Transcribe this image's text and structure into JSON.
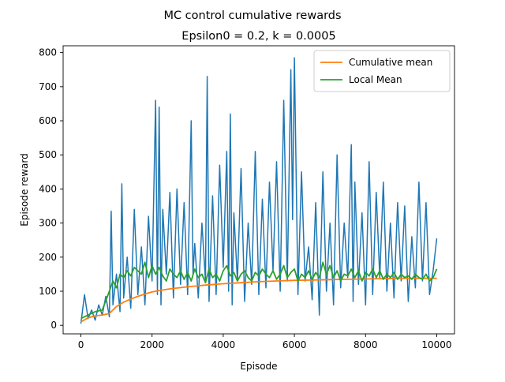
{
  "title": "MC control cumulative rewards",
  "subtitle": "Epsilon0 = 0.2, k = 0.0005",
  "chart_data": {
    "type": "line",
    "xlabel": "Episode",
    "ylabel": "Episode reward",
    "xlim": [
      -500,
      10500
    ],
    "ylim": [
      -25,
      820
    ],
    "xticks": [
      0,
      2000,
      4000,
      6000,
      8000,
      10000
    ],
    "yticks": [
      0,
      100,
      200,
      300,
      400,
      500,
      600,
      700,
      800
    ],
    "grid": false,
    "legend": "top-right",
    "series": [
      {
        "name": "",
        "color": "#1f77b4",
        "x": [
          0,
          100,
          200,
          300,
          400,
          500,
          600,
          700,
          800,
          850,
          900,
          1000,
          1100,
          1150,
          1200,
          1300,
          1400,
          1500,
          1600,
          1700,
          1800,
          1900,
          2000,
          2100,
          2150,
          2200,
          2250,
          2300,
          2400,
          2500,
          2600,
          2700,
          2800,
          2900,
          3000,
          3100,
          3150,
          3200,
          3300,
          3400,
          3500,
          3550,
          3600,
          3700,
          3800,
          3900,
          4000,
          4100,
          4150,
          4200,
          4250,
          4300,
          4400,
          4500,
          4600,
          4700,
          4800,
          4900,
          5000,
          5100,
          5200,
          5300,
          5400,
          5500,
          5600,
          5700,
          5800,
          5900,
          5950,
          6000,
          6100,
          6200,
          6300,
          6400,
          6500,
          6600,
          6700,
          6800,
          6900,
          7000,
          7100,
          7200,
          7300,
          7400,
          7500,
          7600,
          7650,
          7700,
          7800,
          7900,
          8000,
          8100,
          8200,
          8300,
          8400,
          8500,
          8600,
          8700,
          8800,
          8900,
          9000,
          9100,
          9200,
          9300,
          9400,
          9500,
          9600,
          9700,
          9800,
          9900,
          10000
        ],
        "values": [
          5,
          90,
          20,
          45,
          15,
          60,
          30,
          85,
          25,
          335,
          60,
          150,
          40,
          415,
          80,
          200,
          50,
          340,
          90,
          230,
          60,
          320,
          130,
          660,
          90,
          640,
          60,
          340,
          150,
          390,
          80,
          400,
          120,
          360,
          90,
          600,
          150,
          240,
          80,
          300,
          130,
          730,
          70,
          380,
          90,
          470,
          170,
          510,
          100,
          620,
          60,
          330,
          130,
          460,
          70,
          300,
          120,
          510,
          90,
          370,
          110,
          420,
          160,
          480,
          100,
          660,
          130,
          750,
          310,
          785,
          90,
          450,
          130,
          230,
          75,
          360,
          30,
          450,
          100,
          300,
          60,
          500,
          110,
          300,
          140,
          530,
          70,
          420,
          120,
          330,
          60,
          480,
          90,
          390,
          140,
          420,
          100,
          300,
          80,
          360,
          130,
          350,
          70,
          260,
          110,
          420,
          130,
          360,
          90,
          160,
          255
        ]
      },
      {
        "name": "Cumulative mean",
        "color": "#ff7f0e",
        "x": [
          0,
          200,
          400,
          600,
          800,
          1000,
          1200,
          1400,
          1600,
          1800,
          2000,
          2200,
          2500,
          3000,
          3500,
          4000,
          4500,
          5000,
          5500,
          6000,
          6500,
          7000,
          7500,
          8000,
          8500,
          9000,
          9500,
          10000
        ],
        "values": [
          10,
          22,
          28,
          30,
          35,
          55,
          68,
          77,
          85,
          92,
          98,
          102,
          107,
          113,
          118,
          122,
          125,
          128,
          130,
          132,
          133,
          134,
          135,
          136,
          137,
          138,
          138,
          138
        ]
      },
      {
        "name": " Local Mean",
        "color": "#2ca02c",
        "x": [
          0,
          200,
          400,
          600,
          800,
          900,
          1000,
          1100,
          1200,
          1300,
          1400,
          1500,
          1600,
          1700,
          1800,
          1900,
          2000,
          2100,
          2200,
          2300,
          2400,
          2500,
          2600,
          2700,
          2800,
          2900,
          3000,
          3100,
          3200,
          3300,
          3400,
          3500,
          3600,
          3700,
          3800,
          3900,
          4000,
          4100,
          4200,
          4300,
          4400,
          4500,
          4600,
          4700,
          4800,
          4900,
          5000,
          5100,
          5200,
          5300,
          5400,
          5500,
          5600,
          5700,
          5800,
          5900,
          6000,
          6100,
          6200,
          6300,
          6400,
          6500,
          6600,
          6700,
          6800,
          6900,
          7000,
          7100,
          7200,
          7300,
          7400,
          7500,
          7600,
          7700,
          7800,
          7900,
          8000,
          8100,
          8200,
          8300,
          8400,
          8500,
          8600,
          8700,
          8800,
          8900,
          9000,
          9100,
          9200,
          9300,
          9400,
          9500,
          9600,
          9700,
          9800,
          9900,
          10000
        ],
        "values": [
          20,
          30,
          40,
          45,
          100,
          130,
          110,
          150,
          140,
          160,
          145,
          170,
          160,
          150,
          185,
          140,
          175,
          150,
          170,
          145,
          130,
          165,
          150,
          140,
          160,
          135,
          155,
          130,
          165,
          140,
          150,
          125,
          165,
          140,
          150,
          130,
          160,
          175,
          145,
          155,
          130,
          150,
          160,
          140,
          130,
          155,
          145,
          165,
          150,
          140,
          160,
          135,
          150,
          175,
          140,
          155,
          165,
          130,
          150,
          140,
          160,
          135,
          155,
          140,
          185,
          150,
          175,
          140,
          160,
          130,
          150,
          145,
          165,
          140,
          160,
          130,
          155,
          145,
          165,
          140,
          160,
          135,
          150,
          140,
          155,
          135,
          150,
          140,
          145,
          135,
          150,
          140,
          135,
          150,
          130,
          140,
          165
        ]
      }
    ]
  }
}
